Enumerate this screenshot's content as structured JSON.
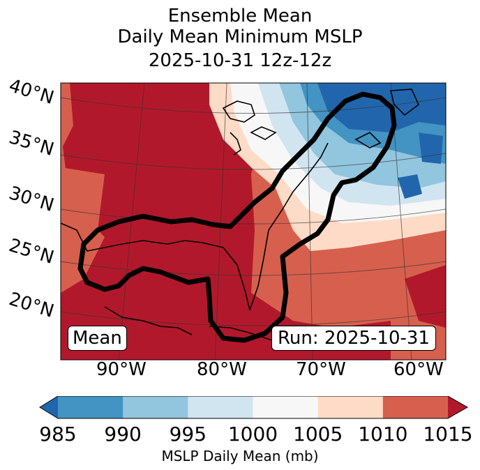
{
  "title": {
    "line1": "Ensemble Mean",
    "line2": "Daily Mean Minimum MSLP",
    "line3": "2025-10-31 12z-12z"
  },
  "map": {
    "lat_labels": [
      "40°N",
      "35°N",
      "30°N",
      "25°N",
      "20°N"
    ],
    "lon_labels": [
      "90°W",
      "80°W",
      "70°W",
      "60°W"
    ],
    "mean_box": "Mean",
    "run_box": "Run: 2025-10-31",
    "colors": {
      "c985": "#2166ac",
      "c990": "#4393c3",
      "c995": "#92c5de",
      "c1000": "#d1e5f0",
      "c1005": "#f7f7f7",
      "c1010": "#fddbc7",
      "c1015": "#d6604d",
      "c1020": "#b2182b"
    }
  },
  "colorbar": {
    "ticks": [
      "985",
      "990",
      "995",
      "1000",
      "1005",
      "1010",
      "1015"
    ],
    "label": "MSLP Daily Mean (mb)",
    "colors": [
      "#2166ac",
      "#4393c3",
      "#92c5de",
      "#d1e5f0",
      "#f7f7f7",
      "#fddbc7",
      "#d6604d",
      "#b2182b"
    ]
  }
}
